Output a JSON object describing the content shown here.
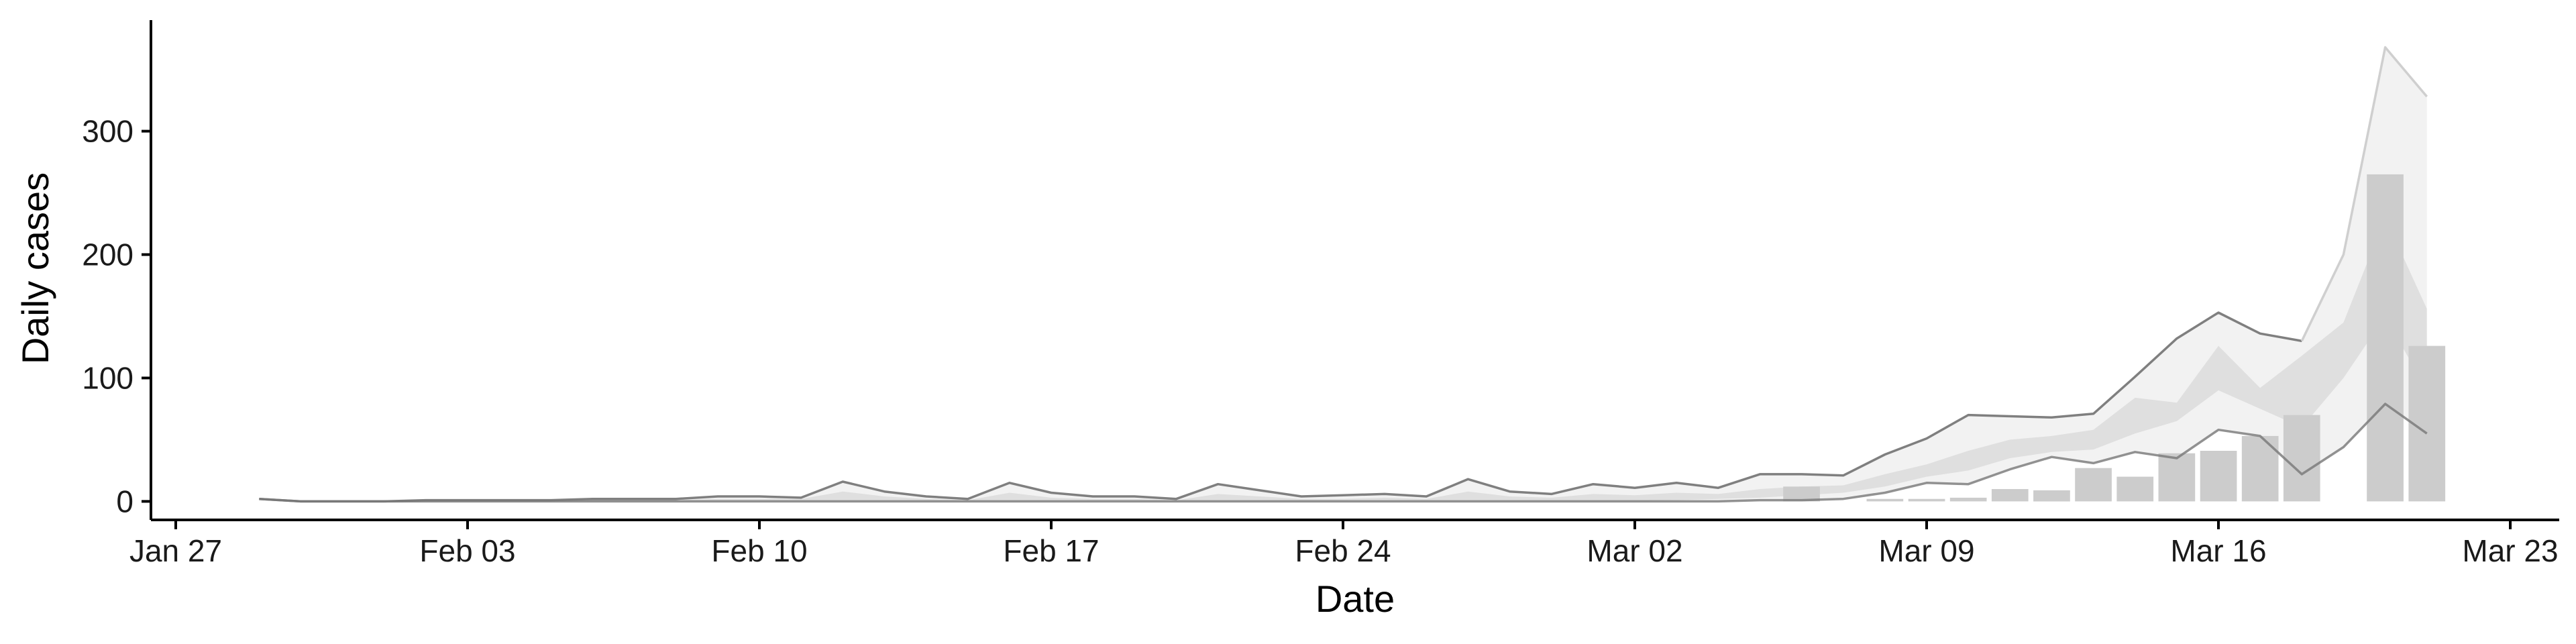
{
  "chart_data": {
    "type": "bar",
    "title": "",
    "xlabel": "Date",
    "ylabel": "Daily cases",
    "ylim": [
      -15,
      390
    ],
    "xlim": [
      "2020-01-27",
      "2020-03-23"
    ],
    "grid": false,
    "legend": "none",
    "x_ticks": [
      {
        "date": "2020-01-27",
        "label": "Jan 27"
      },
      {
        "date": "2020-02-03",
        "label": "Feb 03"
      },
      {
        "date": "2020-02-10",
        "label": "Feb 10"
      },
      {
        "date": "2020-02-17",
        "label": "Feb 17"
      },
      {
        "date": "2020-02-24",
        "label": "Feb 24"
      },
      {
        "date": "2020-03-02",
        "label": "Mar 02"
      },
      {
        "date": "2020-03-09",
        "label": "Mar 09"
      },
      {
        "date": "2020-03-16",
        "label": "Mar 16"
      },
      {
        "date": "2020-03-23",
        "label": "Mar 23"
      }
    ],
    "y_ticks": [
      0,
      100,
      200,
      300
    ],
    "colors": {
      "bar": "#cccccc",
      "outer_band": "#f2f2f2",
      "inner_band": "#dcdcdc",
      "upper_line": "#7f7f7f",
      "upper_line_late": "#cfcfcf",
      "lower_line": "#777777",
      "axis": "#000000"
    },
    "bars": {
      "dates": [
        "2020-03-06",
        "2020-03-07",
        "2020-03-08",
        "2020-03-09",
        "2020-03-10",
        "2020-03-11",
        "2020-03-12",
        "2020-03-13",
        "2020-03-14",
        "2020-03-15",
        "2020-03-16",
        "2020-03-17",
        "2020-03-18",
        "2020-03-19",
        "2020-03-20",
        "2020-03-21"
      ],
      "values": [
        12,
        0,
        2,
        2,
        3,
        10,
        9,
        27,
        20,
        39,
        41,
        53,
        70,
        0,
        265,
        126
      ]
    },
    "bands": {
      "dates": [
        "2020-01-29",
        "2020-01-30",
        "2020-01-31",
        "2020-02-01",
        "2020-02-02",
        "2020-02-03",
        "2020-02-04",
        "2020-02-05",
        "2020-02-06",
        "2020-02-07",
        "2020-02-08",
        "2020-02-09",
        "2020-02-10",
        "2020-02-11",
        "2020-02-12",
        "2020-02-13",
        "2020-02-14",
        "2020-02-15",
        "2020-02-16",
        "2020-02-17",
        "2020-02-18",
        "2020-02-19",
        "2020-02-20",
        "2020-02-21",
        "2020-02-22",
        "2020-02-23",
        "2020-02-24",
        "2020-02-25",
        "2020-02-26",
        "2020-02-27",
        "2020-02-28",
        "2020-02-29",
        "2020-03-01",
        "2020-03-02",
        "2020-03-03",
        "2020-03-04",
        "2020-03-05",
        "2020-03-06",
        "2020-03-07",
        "2020-03-08",
        "2020-03-09",
        "2020-03-10",
        "2020-03-11",
        "2020-03-12",
        "2020-03-13",
        "2020-03-14",
        "2020-03-15",
        "2020-03-16",
        "2020-03-17",
        "2020-03-18",
        "2020-03-19",
        "2020-03-20",
        "2020-03-21"
      ],
      "upper": [
        2,
        0,
        0,
        0,
        1,
        1,
        1,
        1,
        2,
        2,
        2,
        4,
        4,
        3,
        16,
        8,
        4,
        2,
        15,
        7,
        4,
        4,
        2,
        14,
        9,
        4,
        5,
        6,
        4,
        18,
        8,
        6,
        14,
        11,
        15,
        11,
        22,
        22,
        21,
        38,
        51,
        70,
        69,
        68,
        71,
        101,
        132,
        153,
        136,
        130,
        200,
        368,
        328
      ],
      "lower": [
        2,
        0,
        0,
        0,
        0,
        0,
        0,
        0,
        0,
        0,
        0,
        0,
        0,
        0,
        0,
        0,
        0,
        0,
        0,
        0,
        0,
        0,
        0,
        0,
        0,
        0,
        0,
        0,
        0,
        0,
        0,
        0,
        0,
        0,
        0,
        0,
        1,
        1,
        2,
        7,
        15,
        14,
        26,
        36,
        31,
        40,
        35,
        58,
        53,
        22,
        44,
        79,
        55
      ],
      "inner_upper": [
        1,
        0,
        0,
        0,
        0,
        0,
        0,
        0,
        1,
        1,
        1,
        2,
        2,
        2,
        8,
        4,
        2,
        1,
        7,
        3,
        2,
        2,
        1,
        6,
        4,
        2,
        2,
        3,
        2,
        8,
        4,
        3,
        6,
        5,
        7,
        6,
        10,
        12,
        13,
        22,
        30,
        41,
        50,
        53,
        58,
        84,
        80,
        126,
        92,
        118,
        145,
        230,
        156
      ],
      "inner_lower": [
        1,
        0,
        0,
        0,
        0,
        0,
        0,
        0,
        0,
        0,
        0,
        0,
        0,
        0,
        0,
        0,
        0,
        0,
        0,
        0,
        0,
        0,
        0,
        0,
        0,
        0,
        0,
        0,
        0,
        0,
        0,
        0,
        0,
        0,
        1,
        2,
        3,
        5,
        7,
        12,
        20,
        25,
        35,
        40,
        42,
        55,
        65,
        90,
        75,
        60,
        100,
        150,
        90
      ]
    }
  }
}
